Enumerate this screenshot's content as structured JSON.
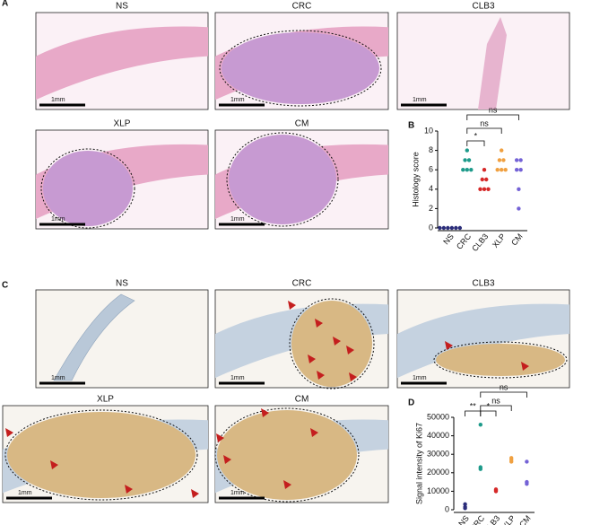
{
  "figure": {
    "panel_labels": [
      "A",
      "B",
      "C",
      "D"
    ],
    "panel_a": [
      {
        "title": "NS",
        "scale": "1mm"
      },
      {
        "title": "CRC",
        "scale": "1mm"
      },
      {
        "title": "CLB3",
        "scale": "1mm"
      },
      {
        "title": "XLP",
        "scale": "1mm"
      },
      {
        "title": "CM",
        "scale": "1mm"
      }
    ],
    "panel_c": [
      {
        "title": "NS",
        "scale": "1mm"
      },
      {
        "title": "CRC",
        "scale": "1mm"
      },
      {
        "title": "CLB3",
        "scale": "1mm"
      },
      {
        "title": "XLP",
        "scale": "1mm"
      },
      {
        "title": "CM",
        "scale": "1mm"
      }
    ]
  },
  "chart_data": [
    {
      "type": "scatter",
      "y_label": "Histology score",
      "categories": [
        "NS",
        "CRC",
        "CLB3",
        "XLP",
        "CM"
      ],
      "colors": [
        "#2b2d7a",
        "#1d9a8a",
        "#d62828",
        "#f0a040",
        "#7462d6"
      ],
      "values": [
        [
          0,
          0,
          0,
          0,
          0,
          0
        ],
        [
          8,
          7,
          7,
          6,
          6,
          6
        ],
        [
          6,
          5,
          5,
          4,
          4,
          4
        ],
        [
          8,
          7,
          7,
          6,
          6,
          6
        ],
        [
          7,
          7,
          6,
          6,
          4,
          2
        ]
      ],
      "ylim": [
        0,
        10
      ],
      "yticks": [
        0,
        2,
        4,
        6,
        8,
        10
      ],
      "significance": [
        "ns",
        "ns",
        "*"
      ]
    },
    {
      "type": "scatter",
      "y_label": "Signal intensity of  Ki67",
      "categories": [
        "NS",
        "CRC",
        "CLB3",
        "XLP",
        "CM"
      ],
      "colors": [
        "#2b2d7a",
        "#1d9a8a",
        "#d62828",
        "#f0a040",
        "#7462d6"
      ],
      "values": [
        [
          3000,
          1500,
          800
        ],
        [
          46000,
          23000,
          22000
        ],
        [
          11000,
          10500,
          10000
        ],
        [
          28000,
          27000,
          26000
        ],
        [
          26000,
          15000,
          14000
        ]
      ],
      "ylim": [
        0,
        50000
      ],
      "yticks": [
        0,
        10000,
        20000,
        30000,
        40000,
        50000
      ],
      "significance": [
        "ns",
        "ns",
        "**",
        "*"
      ]
    }
  ]
}
